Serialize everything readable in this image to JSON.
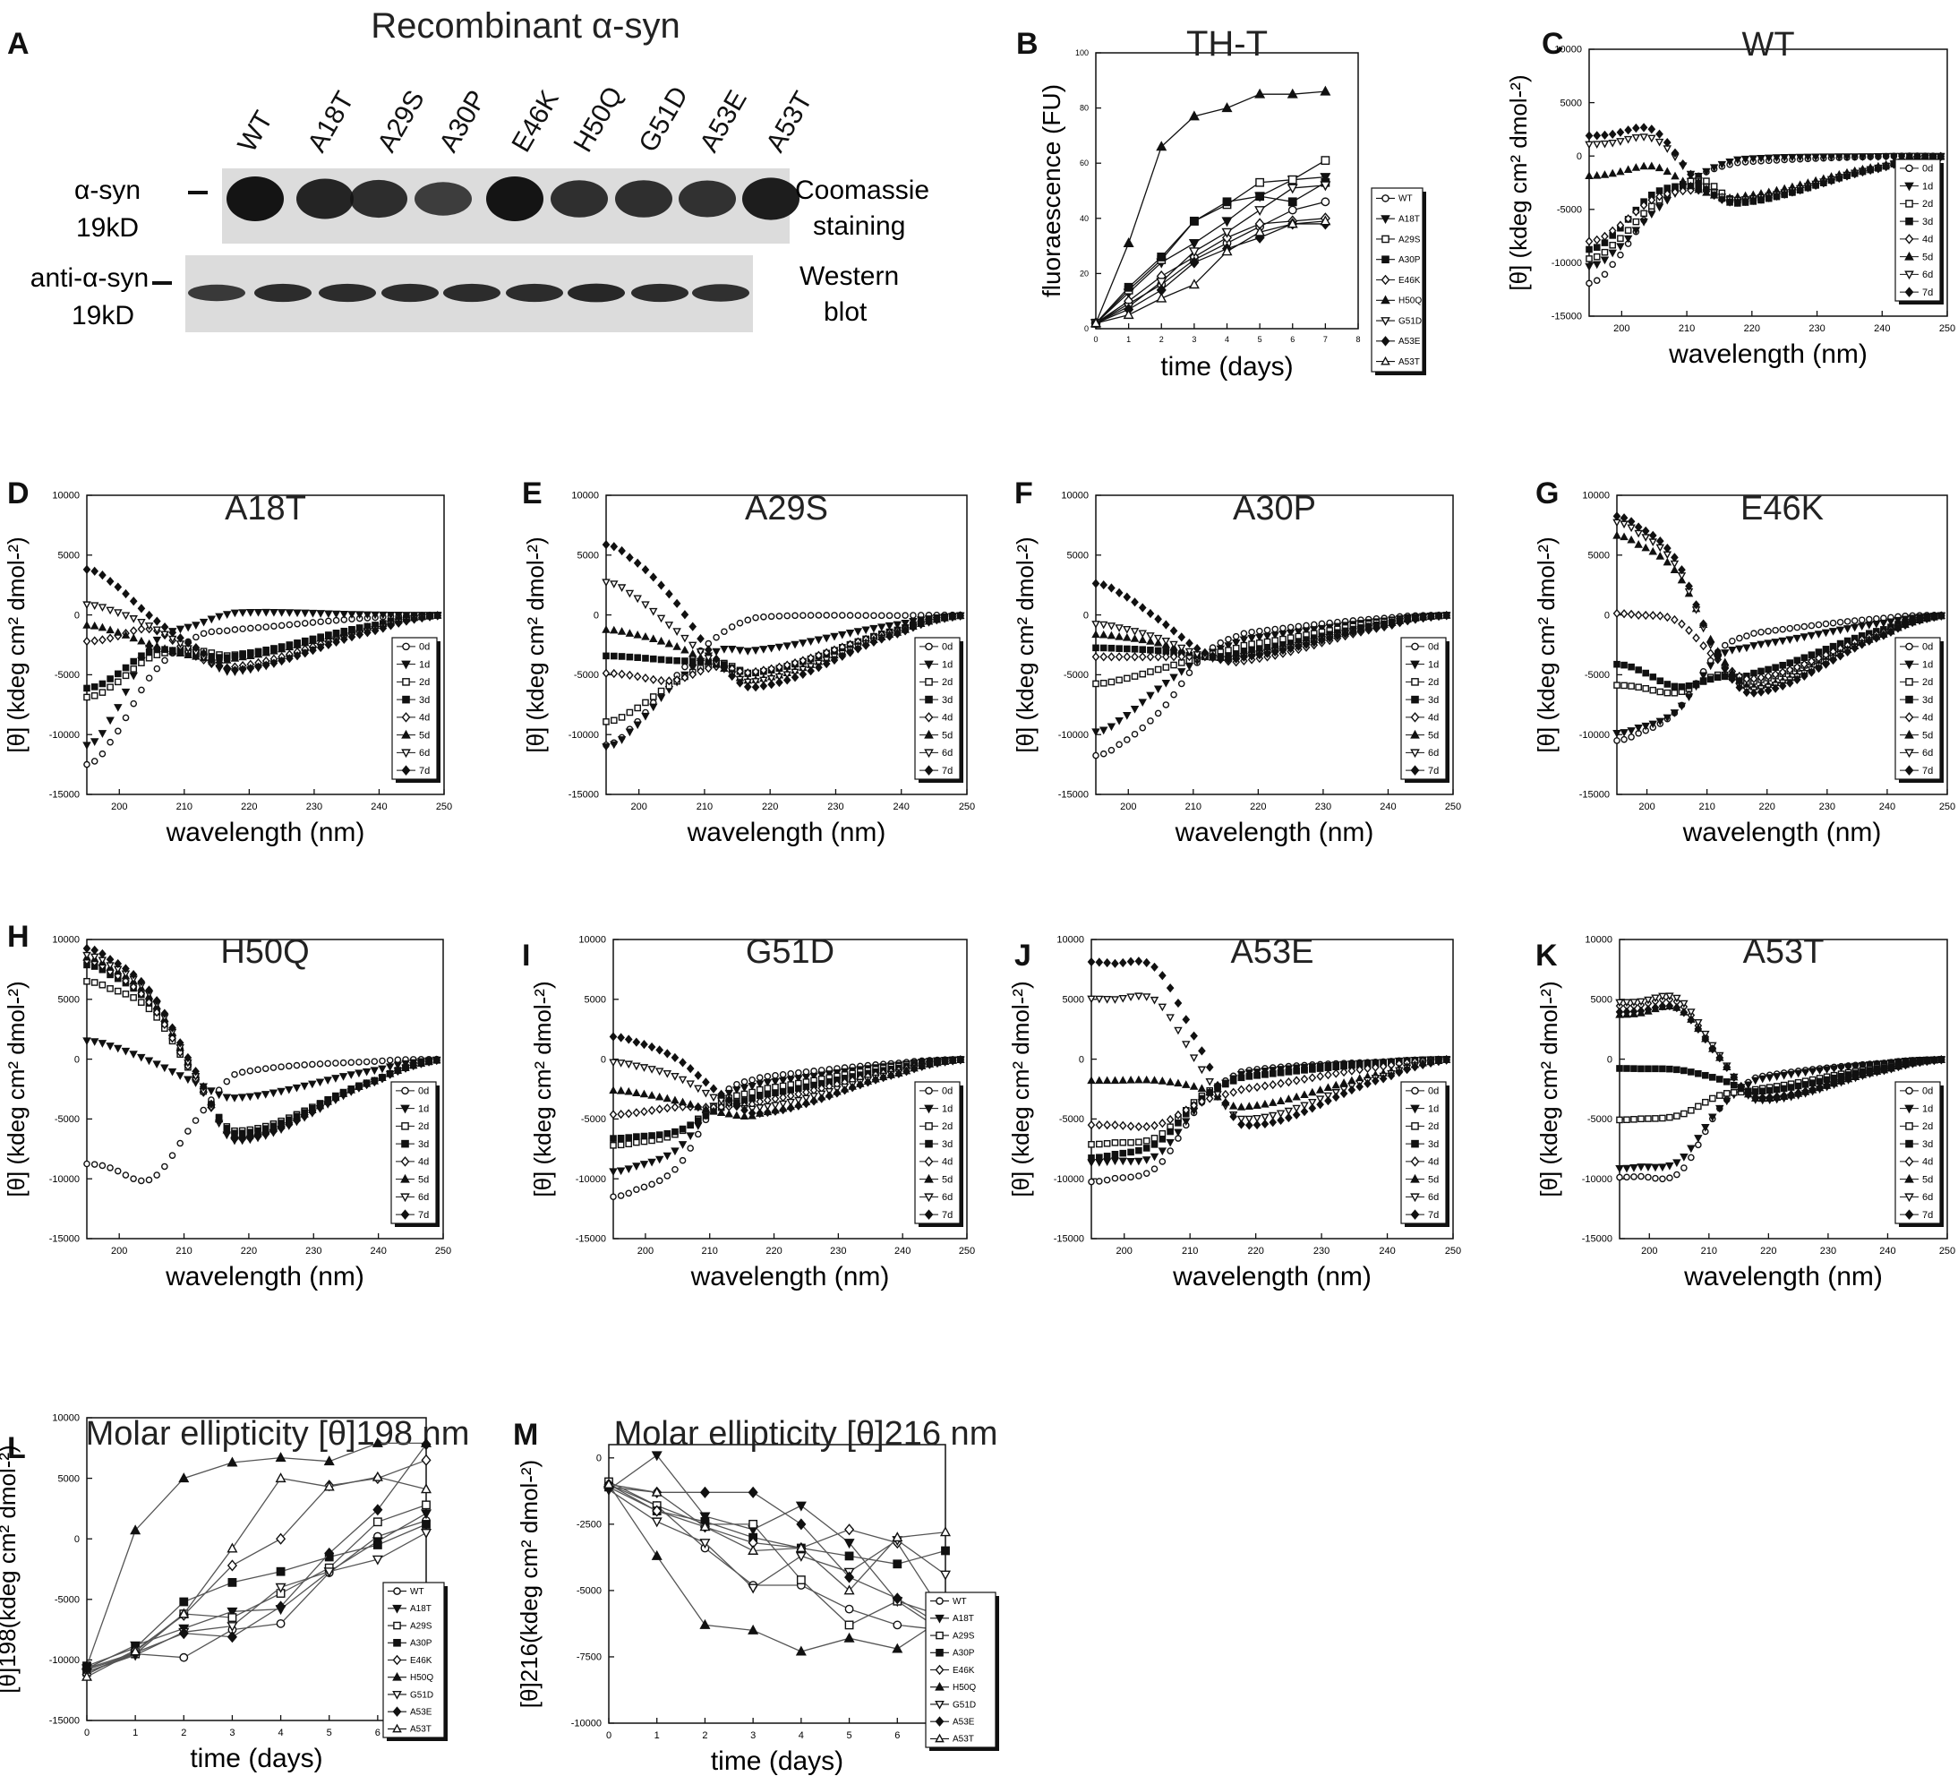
{
  "panel_letters": [
    "A",
    "B",
    "C",
    "D",
    "E",
    "F",
    "G",
    "H",
    "I",
    "J",
    "K",
    "L",
    "M"
  ],
  "blot": {
    "title": "Recombinant α-syn",
    "lanes": [
      "WT",
      "A18T",
      "A29S",
      "A30P",
      "E46K",
      "H50Q",
      "G51D",
      "A53E",
      "A53T"
    ],
    "row1_label_line1": "α-syn",
    "row1_label_line2": "19kD",
    "row1_caption_line1": "Coomassie",
    "row1_caption_line2": "staining",
    "row2_label_line1": "anti-α-syn",
    "row2_label_line2": "19kD",
    "row2_caption_line1": "Western",
    "row2_caption_line2": "blot",
    "coomassie_intensity": [
      1.0,
      0.82,
      0.72,
      0.55,
      1.0,
      0.7,
      0.7,
      0.68,
      0.9
    ],
    "western_intensity": [
      0.7,
      0.85,
      0.85,
      0.85,
      0.85,
      0.85,
      0.9,
      0.85,
      0.8
    ],
    "colors": {
      "background": "#dcdcdc",
      "band": "#141414"
    }
  },
  "colors": {
    "line": "#111111",
    "light_line": "#555555",
    "axis": "#111111"
  },
  "chart_data": [
    {
      "id": "B",
      "type": "line",
      "title": "TH-T",
      "xlabel": "time (days)",
      "ylabel": "fluoraescence (FU)",
      "xlim": [
        0,
        8
      ],
      "ylim": [
        0,
        100
      ],
      "xticks": [
        0,
        1,
        2,
        3,
        4,
        5,
        6,
        7,
        8
      ],
      "yticks": [
        0,
        20,
        40,
        60,
        80,
        100
      ],
      "x": [
        0,
        1,
        2,
        3,
        4,
        5,
        6,
        7
      ],
      "series": [
        {
          "name": "WT",
          "marker": "o-open",
          "values": [
            2,
            9,
            16,
            25,
            31,
            37,
            43,
            46
          ]
        },
        {
          "name": "A18T",
          "marker": "v-filled",
          "values": [
            2,
            13,
            24,
            31,
            39,
            48,
            54,
            55
          ]
        },
        {
          "name": "A29S",
          "marker": "s-open",
          "values": [
            2,
            14,
            25,
            39,
            45,
            53,
            54,
            61
          ]
        },
        {
          "name": "A30P",
          "marker": "s-filled",
          "values": [
            2,
            15,
            26,
            39,
            46,
            48,
            46,
            53
          ]
        },
        {
          "name": "E46K",
          "marker": "d-open",
          "values": [
            2,
            10,
            19,
            26,
            33,
            38,
            39,
            40
          ]
        },
        {
          "name": "H50Q",
          "marker": "^-filled",
          "values": [
            2,
            31,
            66,
            77,
            80,
            85,
            85,
            86
          ]
        },
        {
          "name": "G51D",
          "marker": "v-open",
          "values": [
            2,
            8,
            17,
            28,
            35,
            43,
            51,
            52
          ]
        },
        {
          "name": "A53E",
          "marker": "d-filled",
          "values": [
            2,
            7,
            14,
            24,
            29,
            33,
            38,
            38
          ]
        },
        {
          "name": "A53T",
          "marker": "^-open",
          "values": [
            2,
            5,
            11,
            16,
            28,
            35,
            38,
            39
          ]
        }
      ]
    },
    {
      "id": "C",
      "type": "line",
      "title": "WT",
      "ylabel": "[θ] (kdeg cm² dmol-²)",
      "xlabel": "wavelength (nm)"
    },
    {
      "id": "D",
      "type": "line",
      "title": "A18T",
      "ylabel": "[θ] (kdeg cm² dmol-²)",
      "xlabel": "wavelength (nm)"
    },
    {
      "id": "E",
      "type": "line",
      "title": "A29S",
      "ylabel": "[θ] (kdeg cm² dmol-²)",
      "xlabel": "wavelength (nm)"
    },
    {
      "id": "F",
      "type": "line",
      "title": "A30P",
      "ylabel": "[θ] (kdeg cm² dmol-²)",
      "xlabel": "wavelength (nm)"
    },
    {
      "id": "G",
      "type": "line",
      "title": "E46K",
      "ylabel": "[θ] (kdeg cm² dmol-²)",
      "xlabel": "wavelength (nm)"
    },
    {
      "id": "H",
      "type": "line",
      "title": "H50Q",
      "ylabel": "[θ] (kdeg cm² dmol-²)",
      "xlabel": "wavelength (nm)"
    },
    {
      "id": "I",
      "type": "line",
      "title": "G51D",
      "ylabel": "[θ] (kdeg cm² dmol-²)",
      "xlabel": "wavelength (nm)"
    },
    {
      "id": "J",
      "type": "line",
      "title": "A53E",
      "ylabel": "[θ] (kdeg cm² dmol-²)",
      "xlabel": "wavelength (nm)"
    },
    {
      "id": "K",
      "type": "line",
      "title": "A53T",
      "ylabel": "[θ] (kdeg cm² dmol-²)",
      "xlabel": "wavelength (nm)"
    },
    {
      "id": "L",
      "type": "line",
      "title": "Molar ellipticity [θ]198 nm",
      "xlabel": "time (days)",
      "ylabel": "[θ]198(kdeg cm² dmol-²)",
      "xlim": [
        0,
        7
      ],
      "ylim": [
        -15000,
        10000
      ],
      "xticks": [
        0,
        1,
        2,
        3,
        4,
        5,
        6,
        7
      ],
      "yticks": [
        -15000,
        -10000,
        -5000,
        0,
        5000,
        10000
      ],
      "x": [
        0,
        1,
        2,
        3,
        4,
        5,
        6,
        7
      ],
      "series": [
        {
          "name": "WT",
          "marker": "o-open",
          "values": [
            -10800,
            -9500,
            -9800,
            -7500,
            -7000,
            -2800,
            200,
            1500
          ]
        },
        {
          "name": "A18T",
          "marker": "v-filled",
          "values": [
            -10700,
            -8800,
            -7400,
            -6000,
            -5800,
            -2700,
            -200,
            2100
          ]
        },
        {
          "name": "A29S",
          "marker": "s-open",
          "values": [
            -11000,
            -9500,
            -6200,
            -6500,
            -4500,
            -2400,
            1400,
            2800
          ]
        },
        {
          "name": "A30P",
          "marker": "s-filled",
          "values": [
            -10500,
            -9000,
            -5200,
            -3600,
            -2700,
            -1500,
            -500,
            1200
          ]
        },
        {
          "name": "E46K",
          "marker": "d-open",
          "values": [
            -11200,
            -9200,
            -6300,
            -2200,
            0,
            4400,
            5000,
            6500
          ]
        },
        {
          "name": "H50Q",
          "marker": "^-filled",
          "values": [
            -10500,
            700,
            5000,
            6300,
            6700,
            6400,
            7900,
            7900
          ]
        },
        {
          "name": "G51D",
          "marker": "v-open",
          "values": [
            -11000,
            -9600,
            -7700,
            -7200,
            -4000,
            -2700,
            -1700,
            500
          ]
        },
        {
          "name": "A53E",
          "marker": "d-filled",
          "values": [
            -10700,
            -9400,
            -7800,
            -8100,
            -5600,
            -1200,
            2400,
            7800
          ]
        },
        {
          "name": "A53T",
          "marker": "^-open",
          "values": [
            -11400,
            -9300,
            -6200,
            -800,
            5000,
            4300,
            5100,
            4100
          ]
        }
      ]
    },
    {
      "id": "M",
      "type": "line",
      "title": "Molar ellipticity [θ]216 nm",
      "xlabel": "time (days)",
      "ylabel": "[θ]216(kdeg cm² dmol-²)",
      "xlim": [
        0,
        7
      ],
      "ylim": [
        -10000,
        500
      ],
      "xticks": [
        0,
        1,
        2,
        3,
        4,
        5,
        6,
        7
      ],
      "yticks": [
        -10000,
        -7500,
        -5000,
        -2500,
        0
      ],
      "x": [
        0,
        1,
        2,
        3,
        4,
        5,
        6,
        7
      ],
      "series": [
        {
          "name": "WT",
          "marker": "o-open",
          "values": [
            -1000,
            -1800,
            -3400,
            -4800,
            -4800,
            -5700,
            -6300,
            -6500
          ]
        },
        {
          "name": "A18T",
          "marker": "v-filled",
          "values": [
            -1200,
            100,
            -2200,
            -2700,
            -1800,
            -3200,
            -5400,
            -6600
          ]
        },
        {
          "name": "A29S",
          "marker": "s-open",
          "values": [
            -900,
            -1800,
            -2500,
            -2500,
            -4600,
            -6300,
            -5400,
            -6000
          ]
        },
        {
          "name": "A30P",
          "marker": "s-filled",
          "values": [
            -1100,
            -2000,
            -2400,
            -3000,
            -3400,
            -3700,
            -4000,
            -3500
          ]
        },
        {
          "name": "E46K",
          "marker": "d-open",
          "values": [
            -1000,
            -2000,
            -2600,
            -3200,
            -3400,
            -2700,
            -3200,
            -6000
          ]
        },
        {
          "name": "H50Q",
          "marker": "^-filled",
          "values": [
            -1000,
            -3700,
            -6300,
            -6500,
            -7300,
            -6800,
            -7200,
            -6000
          ]
        },
        {
          "name": "G51D",
          "marker": "v-open",
          "values": [
            -1200,
            -2400,
            -3200,
            -4900,
            -3700,
            -4300,
            -3100,
            -4400
          ]
        },
        {
          "name": "A53E",
          "marker": "d-filled",
          "values": [
            -1100,
            -1300,
            -1300,
            -1300,
            -2500,
            -4500,
            -5300,
            -6400
          ]
        },
        {
          "name": "A53T",
          "marker": "^-open",
          "values": [
            -1000,
            -1300,
            -2600,
            -3500,
            -3400,
            -5000,
            -3000,
            -2800
          ]
        }
      ]
    }
  ],
  "cd_axes": {
    "xlim": [
      195,
      250
    ],
    "ylim": [
      -15000,
      10000
    ],
    "xticks": [
      200,
      210,
      220,
      230,
      240,
      250
    ],
    "yticks": [
      -15000,
      -10000,
      -5000,
      0,
      5000,
      10000
    ]
  },
  "cd_legend": [
    {
      "label": "0d",
      "marker": "o-open"
    },
    {
      "label": "1d",
      "marker": "v-filled"
    },
    {
      "label": "2d",
      "marker": "s-open"
    },
    {
      "label": "3d",
      "marker": "s-filled"
    },
    {
      "label": "4d",
      "marker": "d-open"
    },
    {
      "label": "5d",
      "marker": "^-filled"
    },
    {
      "label": "6d",
      "marker": "v-open"
    },
    {
      "label": "7d",
      "marker": "d-filled"
    }
  ],
  "cd_spectra": {
    "C": [
      [
        -10500,
        -4800,
        -1800,
        -600,
        -200
      ],
      [
        -9300,
        -5200,
        -1800,
        -300,
        -100
      ],
      [
        -8600,
        -4500,
        -2200,
        -4200,
        -4300
      ],
      [
        -7700,
        -3500,
        -2900,
        -4400,
        -4300
      ],
      [
        -7200,
        -4000,
        -3200,
        -4100,
        -4000
      ],
      [
        -1700,
        -1000,
        -3200,
        -3800,
        -3700
      ],
      [
        1200,
        1600,
        -2400,
        -4100,
        -4200
      ],
      [
        2000,
        2400,
        -2600,
        -4300,
        -4500
      ]
    ],
    "D": [
      [
        -11000,
        -5000,
        -1800,
        -1200,
        -800
      ],
      [
        -9200,
        -2500,
        -800,
        200,
        100
      ],
      [
        -6200,
        -3500,
        -3000,
        -3300,
        -3200
      ],
      [
        -5500,
        -3000,
        -3300,
        -3400,
        -3300
      ],
      [
        -2000,
        -1200,
        -3500,
        -4300,
        -4200
      ],
      [
        -1200,
        -2500,
        -3500,
        -3600,
        -3400
      ],
      [
        500,
        -1000,
        -3200,
        -4700,
        -4500
      ],
      [
        3000,
        -200,
        -2800,
        -4600,
        -5000
      ]
    ],
    "E": [
      [
        -9800,
        -5500,
        -1800,
        -200,
        -200
      ],
      [
        -10000,
        -6000,
        -3000,
        -2900,
        -3000
      ],
      [
        -8300,
        -5800,
        -4000,
        -4800,
        -4800
      ],
      [
        -3500,
        -3800,
        -4000,
        -4800,
        -4800
      ],
      [
        -5000,
        -5500,
        -4300,
        -4700,
        -5000
      ],
      [
        -1500,
        -2500,
        -4200,
        -5400,
        -5600
      ],
      [
        2000,
        -1000,
        -4100,
        -5500,
        -5800
      ],
      [
        5000,
        1500,
        -3800,
        -6000,
        -6000
      ]
    ],
    "F": [
      [
        -11000,
        -8000,
        -3200,
        -1500,
        -1000
      ],
      [
        -9000,
        -6000,
        -3400,
        -2000,
        -1800
      ],
      [
        -5500,
        -4500,
        -3400,
        -2500,
        -2200
      ],
      [
        -2800,
        -3000,
        -3500,
        -3000,
        -2800
      ],
      [
        -3500,
        -3500,
        -3500,
        -3800,
        -3800
      ],
      [
        -1800,
        -2400,
        -3500,
        -3200,
        -3000
      ],
      [
        -1000,
        -2000,
        -3500,
        -3400,
        -3200
      ],
      [
        2000,
        -500,
        -3200,
        -3500,
        -3300
      ]
    ],
    "G": [
      [
        -10000,
        -8000,
        -3000,
        -1500,
        -1000
      ],
      [
        -9500,
        -8000,
        -3500,
        -2500,
        -2500
      ],
      [
        -6000,
        -6500,
        -5000,
        -5500,
        -5800
      ],
      [
        -4500,
        -6000,
        -5200,
        -4800,
        -4600
      ],
      [
        0,
        -500,
        -3800,
        -5300,
        -5500
      ],
      [
        6000,
        3500,
        -3200,
        -6000,
        -6200
      ],
      [
        7000,
        4000,
        -3800,
        -6200,
        -6300
      ],
      [
        7500,
        4500,
        -3600,
        -6500,
        -6500
      ]
    ],
    "H": [
      [
        -9000,
        -10000,
        -5000,
        -1200,
        -700
      ],
      [
        1200,
        -200,
        -2000,
        -3200,
        -3500
      ],
      [
        6000,
        4000,
        -1800,
        -6000,
        -6800
      ],
      [
        7200,
        4500,
        -1600,
        -6200,
        -6800
      ],
      [
        7500,
        4500,
        -1800,
        -6500,
        -7200
      ],
      [
        7800,
        5000,
        -1500,
        -6400,
        -7000
      ],
      [
        8000,
        5200,
        -1600,
        -6800,
        -7200
      ],
      [
        8500,
        5500,
        -1200,
        -6700,
        -7000
      ]
    ],
    "I": [
      [
        -11000,
        -9000,
        -3000,
        -1500,
        -1200
      ],
      [
        -9000,
        -7500,
        -3200,
        -2000,
        -1800
      ],
      [
        -7000,
        -6200,
        -3500,
        -2500,
        -2200
      ],
      [
        -6500,
        -6000,
        -4000,
        -3000,
        -2800
      ],
      [
        -4500,
        -4000,
        -4000,
        -3500,
        -3500
      ],
      [
        -2800,
        -3500,
        -4500,
        -4500,
        -4500
      ],
      [
        -500,
        -1500,
        -3500,
        -4000,
        -4200
      ],
      [
        1500,
        0,
        -3000,
        -4500,
        -4600
      ]
    ],
    "J": [
      [
        -10000,
        -9000,
        -3500,
        -1000,
        -800
      ],
      [
        -8500,
        -8000,
        -3500,
        -1200,
        -900
      ],
      [
        -7000,
        -6500,
        -3000,
        -1500,
        -1200
      ],
      [
        -8000,
        -7000,
        -3200,
        -1500,
        -1200
      ],
      [
        -5500,
        -5500,
        -3500,
        -2500,
        -2300
      ],
      [
        -1800,
        -1800,
        -2500,
        -4000,
        -4500
      ],
      [
        5000,
        4800,
        -1000,
        -5000,
        -5300
      ],
      [
        8000,
        7500,
        500,
        -5500,
        -6200
      ]
    ],
    "K": [
      [
        -9800,
        -9500,
        -4000,
        -1500,
        -1200
      ],
      [
        -9000,
        -8500,
        -4000,
        -1700,
        -1300
      ],
      [
        -5000,
        -4700,
        -3000,
        -2500,
        -2400
      ],
      [
        -800,
        -900,
        -1700,
        -2700,
        -2800
      ],
      [
        4500,
        4700,
        0,
        -3200,
        -3500
      ],
      [
        3800,
        4200,
        0,
        -3300,
        -3500
      ],
      [
        4800,
        5000,
        200,
        -3400,
        -3600
      ],
      [
        4000,
        4200,
        0,
        -3300,
        -3500
      ]
    ]
  }
}
